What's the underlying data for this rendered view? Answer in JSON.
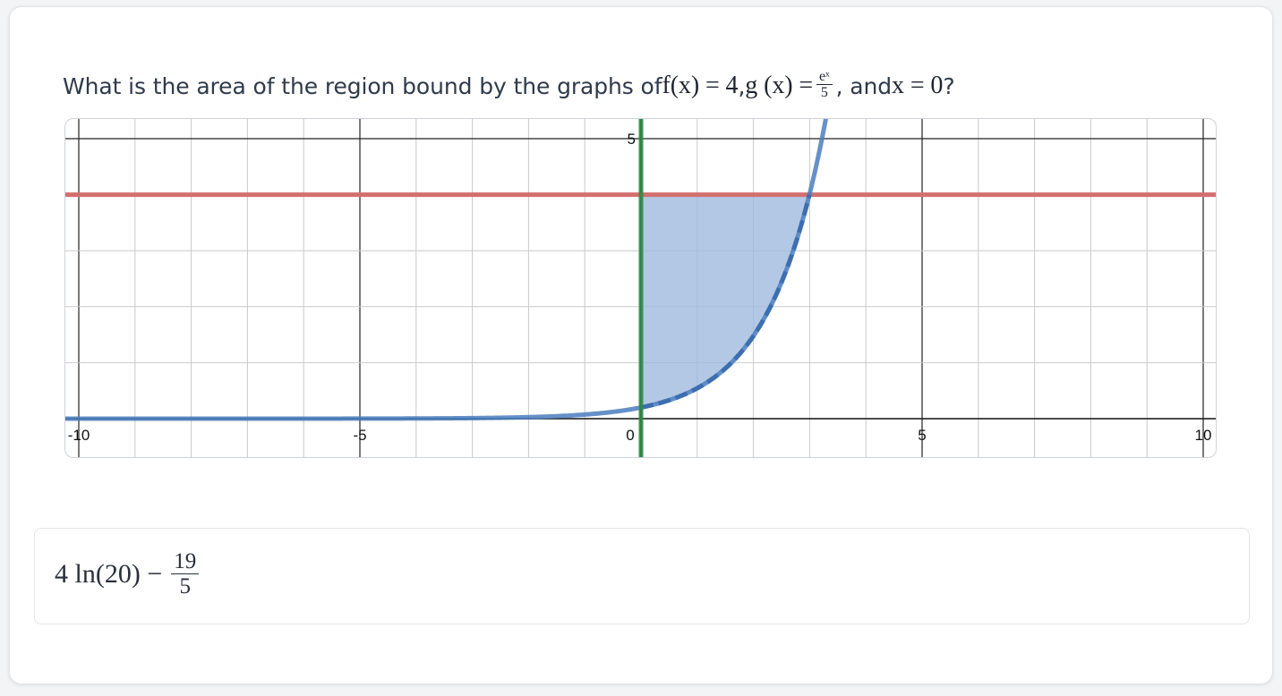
{
  "question": {
    "prefix": "What is the area of the region bound by the graphs of ",
    "f_expr": "f(x) = 4",
    "sep": ", ",
    "g_expr_left": "g (x) =",
    "g_num": "eˣ",
    "g_den": "5",
    "and_text": ", and ",
    "x_expr": "x = 0",
    "suffix": "?"
  },
  "answer": {
    "left": "4 ln(20) −",
    "num": "19",
    "den": "5"
  },
  "colors": {
    "red_line": "#d46f6f",
    "blue_curve": "#4a7ec0",
    "shade": "#9fbadf",
    "green_line": "#2e8b45"
  },
  "chart_data": {
    "type": "line",
    "xlim": [
      -10.3,
      10.3
    ],
    "ylim": [
      -0.7,
      5.3
    ],
    "grid": true,
    "x_ticks": [
      -10,
      -5,
      0,
      5,
      10
    ],
    "x_tick_labels": [
      "-10",
      "-5",
      "0",
      "5",
      "10"
    ],
    "y_ticks": [
      5
    ],
    "y_tick_labels": [
      "5"
    ],
    "series": [
      {
        "kind": "horizontal",
        "expr": "f(x) = 4",
        "y": 4,
        "color": "#d46f6f"
      },
      {
        "kind": "exponential",
        "expr": "g(x) = e^x / 5",
        "color": "#4a7ec0"
      },
      {
        "kind": "vertical",
        "expr": "x = 0",
        "x": 0,
        "color": "#2e8b45"
      }
    ],
    "shaded_region": {
      "x_from": 0,
      "x_to": 2.9957,
      "between": [
        "g(x)",
        "f(x)"
      ]
    }
  }
}
